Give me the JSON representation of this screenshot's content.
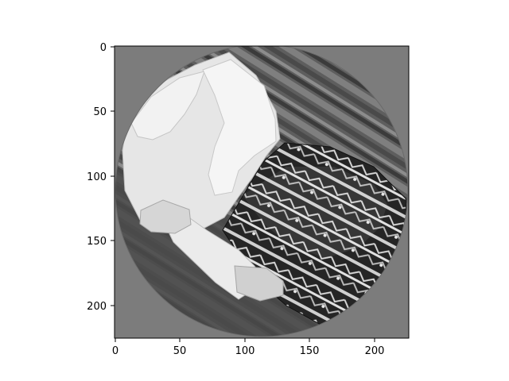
{
  "figure": {
    "background": "#ffffff",
    "plot_background": "#7d7d7d",
    "axes_color": "#000000"
  },
  "image": {
    "description_tag": "grayscale photo in circular mask",
    "fill_colors": {
      "mask": "#7c7c7c",
      "wood_dark": "#3f3f3f",
      "wood_mid": "#6b6b6b",
      "wood_light": "#9a9a9a",
      "sweater": "#e6e6e6",
      "skirt_dark": "#202020",
      "skirt_pattern": "#cfcfcf"
    }
  },
  "axes": {
    "x_ticks": [
      "0",
      "50",
      "100",
      "150",
      "200"
    ],
    "y_ticks": [
      "0",
      "50",
      "100",
      "150",
      "200"
    ],
    "xlim": [
      0,
      227
    ],
    "ylim": [
      227,
      0
    ]
  }
}
